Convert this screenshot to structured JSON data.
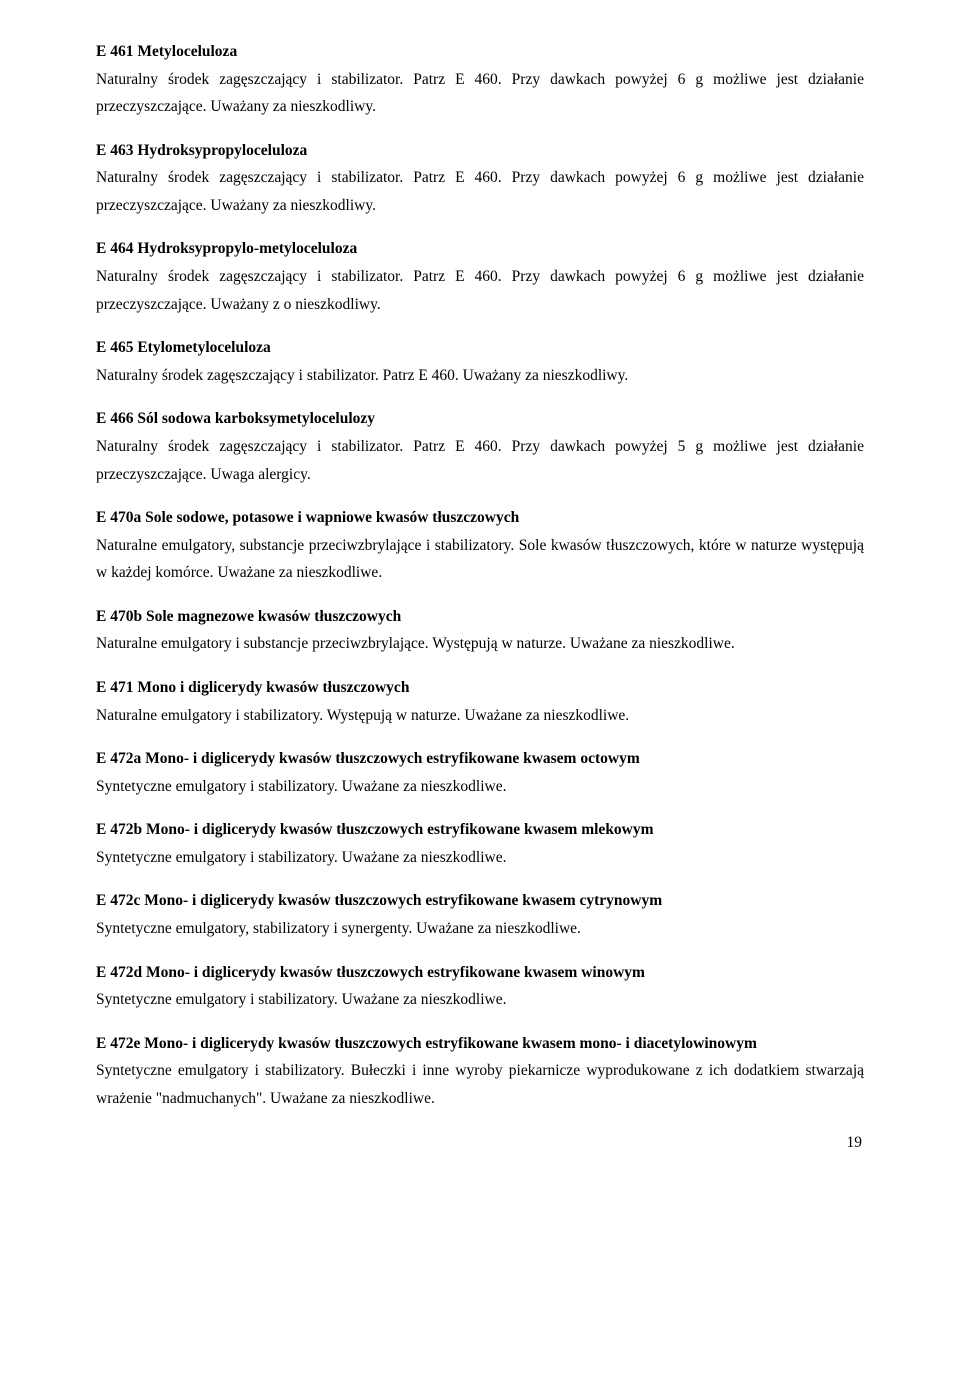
{
  "entries": [
    {
      "code": "E 461 Metyloceluloza",
      "text": "Naturalny środek zagęszczający i stabilizator. Patrz E 460. Przy dawkach powyżej 6 g możliwe jest działanie przeczyszczające. Uważany za nieszkodliwy."
    },
    {
      "code": "E 463 Hydroksypropyloceluloza",
      "text": "Naturalny środek zagęszczający i stabilizator. Patrz E 460. Przy dawkach powyżej 6 g możliwe jest działanie przeczyszczające. Uważany za nieszkodliwy."
    },
    {
      "code": "E 464 Hydroksypropylo-metyloceluloza",
      "text": "Naturalny środek zagęszczający i stabilizator. Patrz E 460. Przy dawkach powyżej 6 g możliwe jest działanie przeczyszczające. Uważany z o nieszkodliwy."
    },
    {
      "code": "E 465 Etylometyloceluloza",
      "text": "Naturalny środek zagęszczający i stabilizator. Patrz E 460. Uważany za nieszkodliwy."
    },
    {
      "code": "E 466 Sól sodowa karboksymetylocelulozy",
      "text": "Naturalny środek zagęszczający i stabilizator. Patrz E 460. Przy dawkach powyżej 5 g możliwe jest działanie przeczyszczające. Uwaga alergicy."
    },
    {
      "code": "E 470a Sole sodowe, potasowe i wapniowe kwasów tłuszczowych",
      "text": "Naturalne emulgatory, substancje przeciwzbrylające i stabilizatory. Sole kwasów tłuszczowych, które w naturze występują w każdej komórce. Uważane za nieszkodliwe."
    },
    {
      "code": "E 470b Sole magnezowe kwasów tłuszczowych",
      "text": "Naturalne emulgatory i substancje przeciwzbrylające. Występują w naturze. Uważane za nieszkodliwe."
    },
    {
      "code": "E 471 Mono i diglicerydy kwasów tłuszczowych",
      "text": "Naturalne emulgatory i stabilizatory. Występują w naturze. Uważane za nieszkodliwe."
    },
    {
      "code": "E 472a Mono- i diglicerydy kwasów tłuszczowych estryfikowane kwasem octowym",
      "text": "Syntetyczne emulgatory i stabilizatory. Uważane za nieszkodliwe."
    },
    {
      "code": "E 472b Mono- i diglicerydy kwasów tłuszczowych estryfikowane kwasem mlekowym",
      "text": "Syntetyczne emulgatory i stabilizatory. Uważane za nieszkodliwe."
    },
    {
      "code": "E 472c Mono- i diglicerydy kwasów tłuszczowych estryfikowane kwasem cytrynowym",
      "text": "Syntetyczne emulgatory, stabilizatory i synergenty. Uważane za nieszkodliwe."
    },
    {
      "code": "E 472d Mono- i diglicerydy kwasów tłuszczowych estryfikowane kwasem winowym",
      "text": "Syntetyczne emulgatory i stabilizatory. Uważane za nieszkodliwe."
    },
    {
      "code": "E 472e Mono- i diglicerydy kwasów tłuszczowych estryfikowane kwasem mono- i diacetylowinowym",
      "text": "Syntetyczne emulgatory i stabilizatory. Bułeczki i inne wyroby piekarnicze wyprodukowane z ich dodatkiem stwarzają wrażenie \"nadmuchanych\". Uważane za nieszkodliwe."
    }
  ],
  "page_number": "19"
}
